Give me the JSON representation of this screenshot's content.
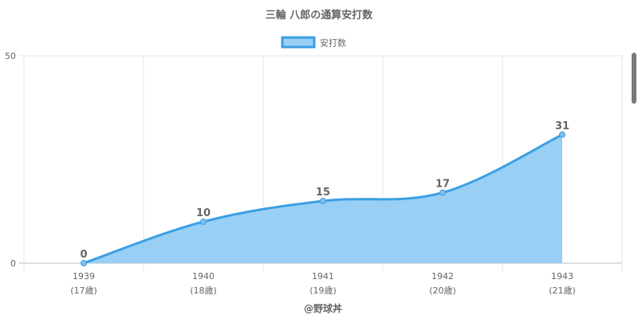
{
  "chart_data": {
    "type": "area",
    "title": "三輪 八郎の通算安打数",
    "categories": [
      "1939",
      "1940",
      "1941",
      "1942",
      "1943"
    ],
    "category_sublabels": [
      "(17歳)",
      "(18歳)",
      "(19歳)",
      "(20歳)",
      "(21歳)"
    ],
    "series": [
      {
        "name": "安打数",
        "values": [
          0,
          10,
          15,
          17,
          31
        ]
      }
    ],
    "ylim": [
      0,
      50
    ],
    "yticks": [
      0,
      50
    ],
    "xlabel": "@野球丼",
    "ylabel": "",
    "legend_position": "top",
    "grid": true,
    "colors": {
      "line": "#3b9fe3",
      "fill": "#99cff5",
      "text": "#666666",
      "grid": "#e6e6e6"
    }
  }
}
